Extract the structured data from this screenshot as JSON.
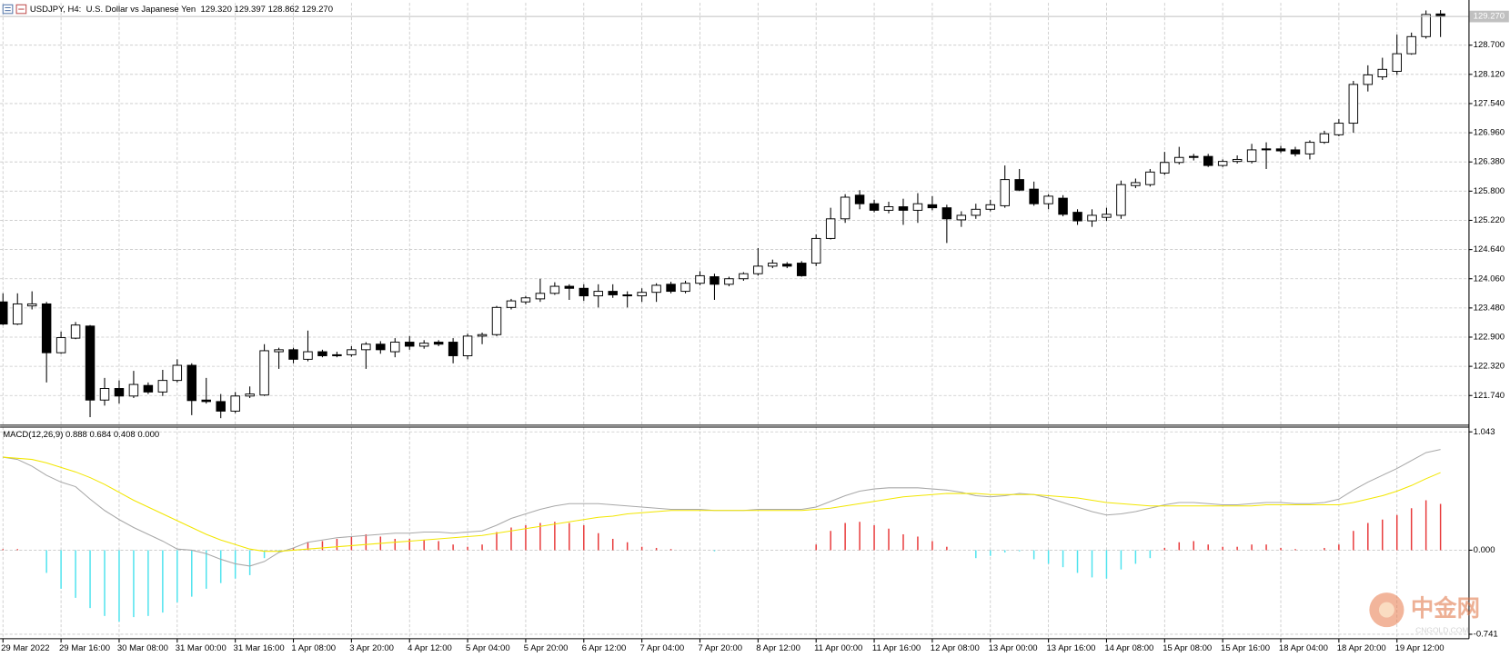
{
  "chart_data": [
    {
      "type": "candlestick",
      "title": "USDJPY, H4:  U.S. Dollar vs Japanese Yen  129.320 129.397 128.862 129.270",
      "categories": [
        "29 Mar 2022",
        null,
        null,
        null,
        "29 Mar 16:00",
        null,
        null,
        null,
        "30 Mar 08:00",
        null,
        null,
        null,
        "31 Mar 00:00",
        null,
        null,
        null,
        "31 Mar 16:00",
        null,
        null,
        null,
        "1 Apr 08:00",
        null,
        null,
        null,
        "3 Apr 20:00",
        null,
        null,
        null,
        "4 Apr 12:00",
        null,
        null,
        null,
        "5 Apr 04:00",
        null,
        null,
        null,
        "5 Apr 20:00",
        null,
        null,
        null,
        "6 Apr 12:00",
        null,
        null,
        null,
        "7 Apr 04:00",
        null,
        null,
        null,
        "7 Apr 20:00",
        null,
        null,
        null,
        "8 Apr 12:00",
        null,
        null,
        null,
        "11 Apr 00:00",
        null,
        null,
        null,
        "11 Apr 16:00",
        null,
        null,
        null,
        "12 Apr 08:00",
        null,
        null,
        null,
        "13 Apr 00:00",
        null,
        null,
        null,
        "13 Apr 16:00",
        null,
        null,
        null,
        "14 Apr 08:00",
        null,
        null,
        null,
        "15 Apr 08:00",
        null,
        null,
        null,
        "15 Apr 16:00",
        null,
        null,
        null,
        "18 Apr 04:00",
        null,
        null,
        null,
        "18 Apr 20:00",
        null,
        null,
        null,
        "19 Apr 12:00",
        null,
        null,
        null
      ],
      "open": [
        123.6,
        123.16,
        123.52,
        123.56,
        122.59,
        122.88,
        123.12,
        121.65,
        121.88,
        121.73,
        121.94,
        121.81,
        122.04,
        122.34,
        121.65,
        121.62,
        121.43,
        121.73,
        121.75,
        122.61,
        122.65,
        122.46,
        122.61,
        122.55,
        122.55,
        122.65,
        122.76,
        122.61,
        122.8,
        122.72,
        122.8,
        122.8,
        122.53,
        122.92,
        122.95,
        123.49,
        123.6,
        123.66,
        123.77,
        123.91,
        123.87,
        123.72,
        123.81,
        123.74,
        123.72,
        123.79,
        123.95,
        123.81,
        123.97,
        124.1,
        123.95,
        124.06,
        124.16,
        124.31,
        124.35,
        124.37,
        124.37,
        124.86,
        125.25,
        125.72,
        125.55,
        125.42,
        125.49,
        125.42,
        125.53,
        125.47,
        125.23,
        125.32,
        125.44,
        125.51,
        126.03,
        125.84,
        125.55,
        125.66,
        125.38,
        125.21,
        125.28,
        125.32,
        125.91,
        125.93,
        126.16,
        126.37,
        126.49,
        126.49,
        126.31,
        126.39,
        126.39,
        126.64,
        126.64,
        126.62,
        126.54,
        126.77,
        126.92,
        127.15,
        127.92,
        128.07,
        128.18,
        128.53,
        128.87,
        129.32
      ],
      "high": [
        123.77,
        123.77,
        123.81,
        123.6,
        123.01,
        123.2,
        123.14,
        122.09,
        122.04,
        122.23,
        122.0,
        122.25,
        122.46,
        122.38,
        122.09,
        121.77,
        121.81,
        121.92,
        122.76,
        122.69,
        122.69,
        123.03,
        122.65,
        122.61,
        122.72,
        122.8,
        122.82,
        122.88,
        122.92,
        122.84,
        122.84,
        122.88,
        122.97,
        122.99,
        123.52,
        123.66,
        123.72,
        124.06,
        123.99,
        123.95,
        123.95,
        123.95,
        123.95,
        123.81,
        123.87,
        123.97,
        124.0,
        124.02,
        124.21,
        124.16,
        124.1,
        124.19,
        124.67,
        124.44,
        124.39,
        124.41,
        124.94,
        125.47,
        125.74,
        125.82,
        125.63,
        125.59,
        125.65,
        125.76,
        125.7,
        125.53,
        125.4,
        125.55,
        125.63,
        126.31,
        126.24,
        125.99,
        125.74,
        125.72,
        125.44,
        125.44,
        125.47,
        126.01,
        126.05,
        126.24,
        126.58,
        126.68,
        126.54,
        126.54,
        126.43,
        126.51,
        126.74,
        126.77,
        126.7,
        126.68,
        126.81,
        127.0,
        127.23,
        127.99,
        128.3,
        128.45,
        128.91,
        128.95,
        129.39,
        129.397
      ],
      "low": [
        123.14,
        123.14,
        123.45,
        122.0,
        122.57,
        122.86,
        121.31,
        121.54,
        121.58,
        121.69,
        121.77,
        121.73,
        122.0,
        121.35,
        121.58,
        121.29,
        121.39,
        121.69,
        121.73,
        122.27,
        122.38,
        122.42,
        122.5,
        122.5,
        122.51,
        122.27,
        122.57,
        122.5,
        122.65,
        122.67,
        122.72,
        122.38,
        122.46,
        122.76,
        122.92,
        123.45,
        123.55,
        123.6,
        123.74,
        123.64,
        123.62,
        123.49,
        123.68,
        123.49,
        123.6,
        123.6,
        123.77,
        123.77,
        123.93,
        123.64,
        123.91,
        124.02,
        124.12,
        124.27,
        124.27,
        124.1,
        124.31,
        124.84,
        125.17,
        125.44,
        125.38,
        125.36,
        125.13,
        125.17,
        125.42,
        124.77,
        125.09,
        125.25,
        125.4,
        125.47,
        125.8,
        125.51,
        125.44,
        125.3,
        125.13,
        125.09,
        125.21,
        125.25,
        125.86,
        125.89,
        126.12,
        126.33,
        126.41,
        126.28,
        126.28,
        126.35,
        126.35,
        126.24,
        126.56,
        126.49,
        126.43,
        126.74,
        126.89,
        126.96,
        127.78,
        128.01,
        128.11,
        128.51,
        128.83,
        128.862
      ],
      "close": [
        123.16,
        123.56,
        123.56,
        122.59,
        122.89,
        123.14,
        121.65,
        121.88,
        121.73,
        121.96,
        121.81,
        122.04,
        122.34,
        121.64,
        121.62,
        121.43,
        121.73,
        121.77,
        122.63,
        122.65,
        122.46,
        122.61,
        122.53,
        122.53,
        122.65,
        122.76,
        122.65,
        122.8,
        122.72,
        122.78,
        122.76,
        122.53,
        122.92,
        122.95,
        123.49,
        123.62,
        123.68,
        123.77,
        123.91,
        123.87,
        123.72,
        123.81,
        123.74,
        123.72,
        123.79,
        123.93,
        123.81,
        123.97,
        124.12,
        123.95,
        124.06,
        124.16,
        124.31,
        124.37,
        124.31,
        124.12,
        124.86,
        125.25,
        125.68,
        125.55,
        125.42,
        125.49,
        125.42,
        125.55,
        125.47,
        125.25,
        125.32,
        125.44,
        125.53,
        126.03,
        125.82,
        125.55,
        125.7,
        125.34,
        125.21,
        125.32,
        125.34,
        125.93,
        125.97,
        126.18,
        126.37,
        126.47,
        126.47,
        126.31,
        126.39,
        126.43,
        126.62,
        126.62,
        126.6,
        126.54,
        126.77,
        126.94,
        127.15,
        127.92,
        128.11,
        128.22,
        128.53,
        128.87,
        129.31,
        129.27
      ],
      "up_color": "#ffffff",
      "down_color": "#000000",
      "outline_color": "#000000",
      "ylim": [
        121.17,
        129.54
      ],
      "yticks": [
        {
          "value": 128.7,
          "label": "128.700"
        },
        {
          "value": 128.12,
          "label": "128.120"
        },
        {
          "value": 127.54,
          "label": "127.540"
        },
        {
          "value": 126.96,
          "label": "126.960"
        },
        {
          "value": 126.38,
          "label": "126.380"
        },
        {
          "value": 125.8,
          "label": "125.800"
        },
        {
          "value": 125.22,
          "label": "125.220"
        },
        {
          "value": 124.64,
          "label": "124.640"
        },
        {
          "value": 124.06,
          "label": "124.060"
        },
        {
          "value": 123.48,
          "label": "123.480"
        },
        {
          "value": 122.9,
          "label": "122.900"
        },
        {
          "value": 122.32,
          "label": "122.320"
        },
        {
          "value": 121.74,
          "label": "121.740"
        }
      ],
      "current_price": {
        "value": 129.27,
        "label": "129.270"
      },
      "grid": true
    },
    {
      "type": "macd",
      "title": "MACD(12,26,9) 0.888 0.684 0.408 0.000",
      "series": [
        {
          "color": "#a8a8a8",
          "values": [
            0.82,
            0.8,
            0.74,
            0.66,
            0.6,
            0.56,
            0.45,
            0.35,
            0.27,
            0.2,
            0.14,
            0.08,
            0.01,
            0.0,
            -0.03,
            -0.08,
            -0.12,
            -0.14,
            -0.1,
            -0.02,
            0.02,
            0.07,
            0.09,
            0.11,
            0.12,
            0.13,
            0.14,
            0.15,
            0.15,
            0.16,
            0.16,
            0.15,
            0.16,
            0.17,
            0.22,
            0.28,
            0.32,
            0.36,
            0.39,
            0.41,
            0.41,
            0.41,
            0.4,
            0.39,
            0.38,
            0.37,
            0.36,
            0.36,
            0.36,
            0.35,
            0.35,
            0.35,
            0.36,
            0.36,
            0.36,
            0.36,
            0.38,
            0.43,
            0.48,
            0.52,
            0.54,
            0.55,
            0.55,
            0.55,
            0.54,
            0.53,
            0.51,
            0.48,
            0.47,
            0.48,
            0.5,
            0.49,
            0.46,
            0.42,
            0.38,
            0.34,
            0.31,
            0.32,
            0.34,
            0.37,
            0.4,
            0.42,
            0.42,
            0.41,
            0.4,
            0.4,
            0.41,
            0.42,
            0.42,
            0.41,
            0.41,
            0.42,
            0.45,
            0.53,
            0.6,
            0.66,
            0.72,
            0.79,
            0.86,
            0.888
          ]
        },
        {
          "color": "#f2e600",
          "values": [
            0.82,
            0.81,
            0.8,
            0.77,
            0.73,
            0.69,
            0.64,
            0.58,
            0.51,
            0.44,
            0.38,
            0.32,
            0.26,
            0.2,
            0.14,
            0.09,
            0.05,
            0.01,
            -0.01,
            -0.01,
            0.0,
            0.01,
            0.02,
            0.03,
            0.04,
            0.05,
            0.06,
            0.07,
            0.08,
            0.09,
            0.1,
            0.11,
            0.12,
            0.13,
            0.15,
            0.17,
            0.19,
            0.21,
            0.23,
            0.25,
            0.27,
            0.29,
            0.3,
            0.32,
            0.33,
            0.34,
            0.35,
            0.35,
            0.35,
            0.35,
            0.35,
            0.35,
            0.35,
            0.35,
            0.35,
            0.35,
            0.36,
            0.37,
            0.39,
            0.41,
            0.43,
            0.45,
            0.47,
            0.48,
            0.49,
            0.5,
            0.5,
            0.5,
            0.49,
            0.49,
            0.49,
            0.49,
            0.48,
            0.47,
            0.46,
            0.44,
            0.42,
            0.41,
            0.4,
            0.39,
            0.39,
            0.39,
            0.39,
            0.39,
            0.39,
            0.39,
            0.39,
            0.4,
            0.4,
            0.4,
            0.4,
            0.4,
            0.4,
            0.42,
            0.45,
            0.48,
            0.52,
            0.57,
            0.63,
            0.684
          ]
        }
      ],
      "histogram": {
        "up_color": "#e8393a",
        "down_color": "#4ee3ee",
        "values": [
          0.01,
          0.01,
          0.0,
          -0.2,
          -0.34,
          -0.42,
          -0.51,
          -0.58,
          -0.63,
          -0.59,
          -0.58,
          -0.55,
          -0.46,
          -0.41,
          -0.34,
          -0.29,
          -0.25,
          -0.22,
          -0.07,
          -0.02,
          0.02,
          0.07,
          0.08,
          0.1,
          0.12,
          0.14,
          0.12,
          0.1,
          0.1,
          0.09,
          0.08,
          0.05,
          0.03,
          0.05,
          0.16,
          0.2,
          0.22,
          0.24,
          0.25,
          0.24,
          0.22,
          0.15,
          0.1,
          0.07,
          0.03,
          0.02,
          0.01,
          0.0,
          0.0,
          -0.01,
          0.0,
          0.0,
          0.0,
          0.0,
          0.0,
          0.0,
          0.05,
          0.17,
          0.24,
          0.25,
          0.22,
          0.19,
          0.14,
          0.12,
          0.08,
          0.03,
          0.0,
          -0.07,
          -0.05,
          -0.02,
          -0.01,
          -0.08,
          -0.12,
          -0.15,
          -0.2,
          -0.24,
          -0.25,
          -0.17,
          -0.12,
          -0.07,
          0.02,
          0.07,
          0.08,
          0.05,
          0.03,
          0.03,
          0.05,
          0.05,
          0.02,
          0.01,
          0.0,
          0.02,
          0.05,
          0.17,
          0.24,
          0.27,
          0.31,
          0.37,
          0.44,
          0.408
        ]
      },
      "ylim": [
        -0.772,
        1.085
      ],
      "yticks": [
        1.043,
        {
          "value": 0,
          "label": "0.000"
        },
        -0.741
      ],
      "grid": true
    }
  ],
  "watermark": {
    "name": "中金网",
    "site": "CNGOLD.COM"
  }
}
